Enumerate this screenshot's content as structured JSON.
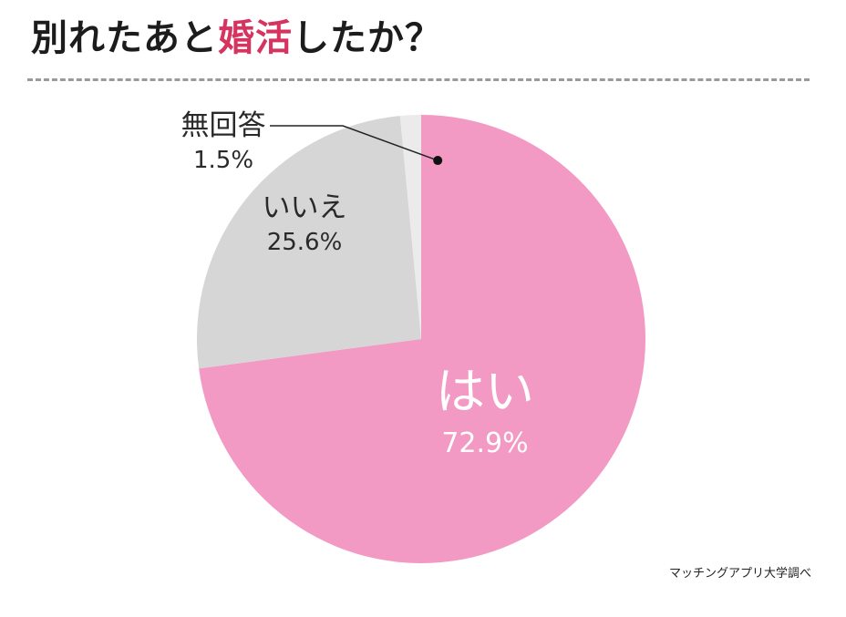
{
  "title": {
    "prefix": "別れたあと",
    "highlight": "婚活",
    "suffix": "したか？"
  },
  "colors": {
    "highlight": "#d6335f",
    "divider": "#9a9a9a",
    "text": "#1c1c1c"
  },
  "source": "マッチングアプリ大学調べ",
  "chart_data": {
    "type": "pie",
    "title": "別れたあと婚活したか？",
    "slices": [
      {
        "label": "はい",
        "value": 72.9,
        "value_label": "72.9%",
        "color": "#f29ac4"
      },
      {
        "label": "いいえ",
        "value": 25.6,
        "value_label": "25.6%",
        "color": "#d6d6d6"
      },
      {
        "label": "無回答",
        "value": 1.5,
        "value_label": "1.5%",
        "color": "#ebebeb"
      }
    ]
  }
}
